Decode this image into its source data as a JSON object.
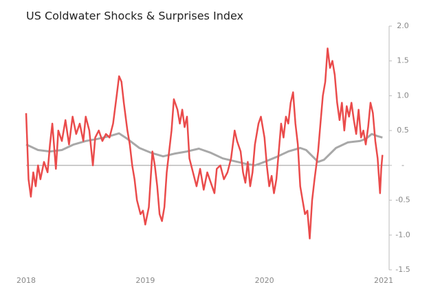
{
  "chart_data": {
    "type": "line",
    "title": "US Coldwater Shocks & Surprises Index",
    "xlim": [
      2018,
      2021
    ],
    "xticks": [
      2018,
      2019,
      2020,
      2021
    ],
    "ylim": [
      -1.5,
      2
    ],
    "yticks": [
      {
        "value": 2,
        "label": "2.0"
      },
      1.5,
      {
        "value": 1,
        "label": "1.0"
      },
      0.5,
      {
        "value": 0,
        "label": "-"
      },
      -0.5,
      {
        "value": -1,
        "label": "-1.0"
      },
      -1.5
    ],
    "series": [
      {
        "color": "#ea4b4b",
        "x": [
          2018.0,
          2018.01,
          2018.02,
          2018.04,
          2018.06,
          2018.08,
          2018.1,
          2018.12,
          2018.15,
          2018.18,
          2018.2,
          2018.22,
          2018.25,
          2018.27,
          2018.3,
          2018.33,
          2018.36,
          2018.39,
          2018.42,
          2018.45,
          2018.48,
          2018.5,
          2018.53,
          2018.56,
          2018.58,
          2018.61,
          2018.64,
          2018.67,
          2018.7,
          2018.73,
          2018.76,
          2018.78,
          2018.8,
          2018.82,
          2018.85,
          2018.87,
          2018.89,
          2018.91,
          2018.93,
          2018.96,
          2018.98,
          2019.0,
          2019.03,
          2019.06,
          2019.08,
          2019.1,
          2019.12,
          2019.14,
          2019.16,
          2019.18,
          2019.2,
          2019.22,
          2019.24,
          2019.27,
          2019.29,
          2019.31,
          2019.33,
          2019.35,
          2019.37,
          2019.4,
          2019.43,
          2019.46,
          2019.49,
          2019.52,
          2019.55,
          2019.58,
          2019.6,
          2019.63,
          2019.66,
          2019.69,
          2019.72,
          2019.75,
          2019.77,
          2019.8,
          2019.82,
          2019.84,
          2019.86,
          2019.88,
          2019.9,
          2019.92,
          2019.95,
          2019.97,
          2020.0,
          2020.02,
          2020.04,
          2020.06,
          2020.08,
          2020.1,
          2020.12,
          2020.14,
          2020.16,
          2020.18,
          2020.2,
          2020.22,
          2020.24,
          2020.26,
          2020.28,
          2020.3,
          2020.32,
          2020.34,
          2020.36,
          2020.38,
          2020.4,
          2020.42,
          2020.45,
          2020.47,
          2020.49,
          2020.51,
          2020.53,
          2020.55,
          2020.57,
          2020.59,
          2020.61,
          2020.63,
          2020.65,
          2020.67,
          2020.69,
          2020.71,
          2020.73,
          2020.75,
          2020.77,
          2020.79,
          2020.81,
          2020.83,
          2020.85,
          2020.87,
          2020.89,
          2020.91,
          2020.93,
          2020.95,
          2020.97,
          2020.98,
          2020.99
        ],
        "values": [
          0.75,
          0.3,
          -0.2,
          -0.45,
          -0.1,
          -0.3,
          0.0,
          -0.2,
          0.05,
          -0.1,
          0.3,
          0.6,
          -0.05,
          0.5,
          0.35,
          0.65,
          0.3,
          0.7,
          0.45,
          0.6,
          0.35,
          0.7,
          0.5,
          0.0,
          0.4,
          0.5,
          0.35,
          0.45,
          0.4,
          0.6,
          1.0,
          1.28,
          1.2,
          0.9,
          0.5,
          0.3,
          0.0,
          -0.2,
          -0.5,
          -0.7,
          -0.65,
          -0.85,
          -0.6,
          0.2,
          0.0,
          -0.3,
          -0.7,
          -0.8,
          -0.6,
          -0.1,
          0.2,
          0.5,
          0.95,
          0.8,
          0.6,
          0.8,
          0.55,
          0.7,
          0.1,
          -0.1,
          -0.3,
          -0.05,
          -0.35,
          -0.1,
          -0.25,
          -0.4,
          -0.05,
          0.0,
          -0.2,
          -0.1,
          0.1,
          0.5,
          0.35,
          0.2,
          -0.1,
          -0.25,
          0.05,
          -0.3,
          -0.1,
          0.3,
          0.6,
          0.7,
          0.4,
          0.0,
          -0.3,
          -0.15,
          -0.4,
          -0.2,
          0.2,
          0.6,
          0.4,
          0.7,
          0.6,
          0.9,
          1.05,
          0.6,
          0.3,
          -0.3,
          -0.5,
          -0.7,
          -0.65,
          -1.05,
          -0.5,
          -0.2,
          0.2,
          0.6,
          1.0,
          1.2,
          1.68,
          1.4,
          1.5,
          1.3,
          0.9,
          0.65,
          0.9,
          0.5,
          0.85,
          0.7,
          0.9,
          0.65,
          0.45,
          0.8,
          0.4,
          0.5,
          0.3,
          0.55,
          0.9,
          0.75,
          0.35,
          0.1,
          -0.4,
          -0.05,
          0.15
        ]
      },
      {
        "color": "#a8a8a8",
        "x": [
          2018.0,
          2018.1,
          2018.2,
          2018.3,
          2018.4,
          2018.5,
          2018.6,
          2018.7,
          2018.78,
          2018.85,
          2018.95,
          2019.05,
          2019.15,
          2019.25,
          2019.35,
          2019.45,
          2019.55,
          2019.65,
          2019.75,
          2019.85,
          2019.92,
          2020.0,
          2020.1,
          2020.2,
          2020.3,
          2020.35,
          2020.45,
          2020.5,
          2020.6,
          2020.7,
          2020.8,
          2020.85,
          2020.9,
          2020.95,
          2020.99
        ],
        "values": [
          0.3,
          0.22,
          0.2,
          0.22,
          0.3,
          0.35,
          0.38,
          0.42,
          0.46,
          0.38,
          0.25,
          0.18,
          0.13,
          0.17,
          0.2,
          0.24,
          0.18,
          0.1,
          0.06,
          0.02,
          0.0,
          0.05,
          0.12,
          0.2,
          0.25,
          0.22,
          0.05,
          0.08,
          0.25,
          0.33,
          0.35,
          0.38,
          0.45,
          0.42,
          0.4
        ]
      }
    ]
  }
}
